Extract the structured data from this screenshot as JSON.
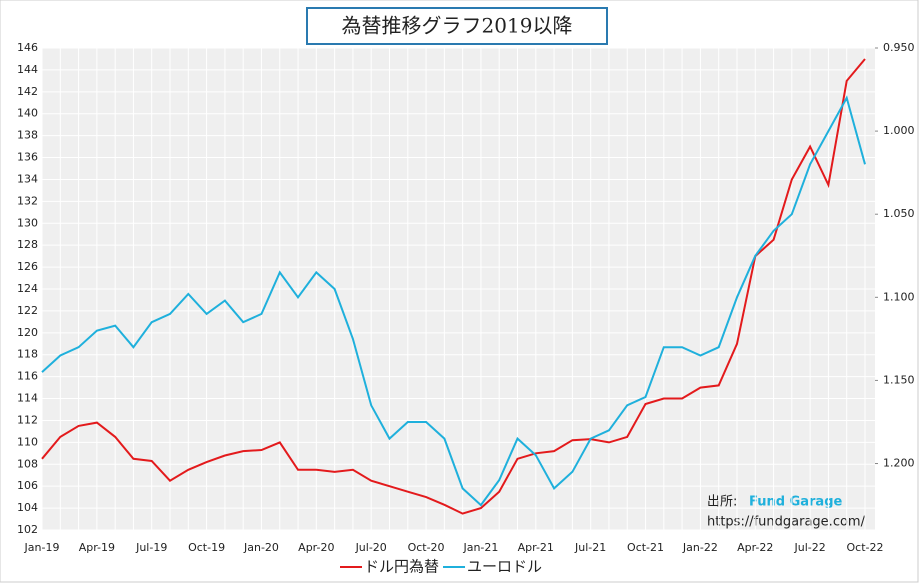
{
  "chart_data": {
    "type": "line",
    "title": "為替推移グラフ2019以降",
    "categories": [
      "Jan-19",
      null,
      null,
      "Apr-19",
      null,
      null,
      "Jul-19",
      null,
      null,
      "Oct-19",
      null,
      null,
      "Jan-20",
      null,
      null,
      "Apr-20",
      null,
      null,
      "Jul-20",
      null,
      null,
      "Oct-20",
      null,
      null,
      "Jan-21",
      null,
      null,
      "Apr-21",
      null,
      null,
      "Jul-21",
      null,
      null,
      "Oct-21",
      null,
      null,
      "Jan-22",
      null,
      null,
      "Apr-22",
      null,
      null,
      "Jul-22",
      null,
      null,
      "Oct-22"
    ],
    "series": [
      {
        "name": "ドル円為替",
        "color": "#e31a1c",
        "axis": "y",
        "values": [
          108.5,
          110.5,
          111.5,
          111.8,
          110.5,
          108.5,
          108.3,
          106.5,
          107.5,
          108.2,
          108.8,
          109.2,
          109.3,
          110.0,
          107.5,
          107.5,
          107.3,
          107.5,
          106.5,
          106.0,
          105.5,
          105.0,
          104.3,
          103.5,
          104.0,
          105.5,
          108.5,
          109.0,
          109.2,
          110.2,
          110.3,
          110.0,
          110.5,
          113.5,
          114.0,
          114.0,
          115.0,
          115.2,
          119.0,
          127.0,
          128.5,
          134.0,
          137.0,
          133.5,
          143.0,
          145.0
        ]
      },
      {
        "name": "ユーロドル",
        "color": "#1fb0dc",
        "axis": "y2",
        "values": [
          1.145,
          1.135,
          1.13,
          1.12,
          1.117,
          1.13,
          1.115,
          1.11,
          1.098,
          1.11,
          1.102,
          1.115,
          1.11,
          1.085,
          1.1,
          1.085,
          1.095,
          1.125,
          1.165,
          1.185,
          1.175,
          1.175,
          1.185,
          1.215,
          1.225,
          1.21,
          1.185,
          1.195,
          1.215,
          1.205,
          1.185,
          1.18,
          1.165,
          1.16,
          1.13,
          1.13,
          1.135,
          1.13,
          1.1,
          1.075,
          1.06,
          1.05,
          1.02,
          1.0,
          0.98,
          1.02
        ]
      }
    ],
    "ylim": [
      102,
      146
    ],
    "yticks": [
      102,
      104,
      106,
      108,
      110,
      112,
      114,
      116,
      118,
      120,
      122,
      124,
      126,
      128,
      130,
      132,
      134,
      136,
      138,
      140,
      142,
      144,
      146
    ],
    "y2lim": [
      1.24,
      0.95
    ],
    "y2ticks": [
      {
        "value": 0.95,
        "label": "0.950"
      },
      {
        "value": 1.0,
        "label": "1.000"
      },
      {
        "value": 1.05,
        "label": "1.050"
      },
      {
        "value": 1.1,
        "label": "1.100"
      },
      {
        "value": 1.15,
        "label": "1.150"
      },
      {
        "value": 1.2,
        "label": "1.200"
      }
    ],
    "grid": true,
    "legend": "bottom",
    "source_prefix": "出所:",
    "source_name": "Fund Garage",
    "source_url": "https://fundgarage.com/"
  }
}
